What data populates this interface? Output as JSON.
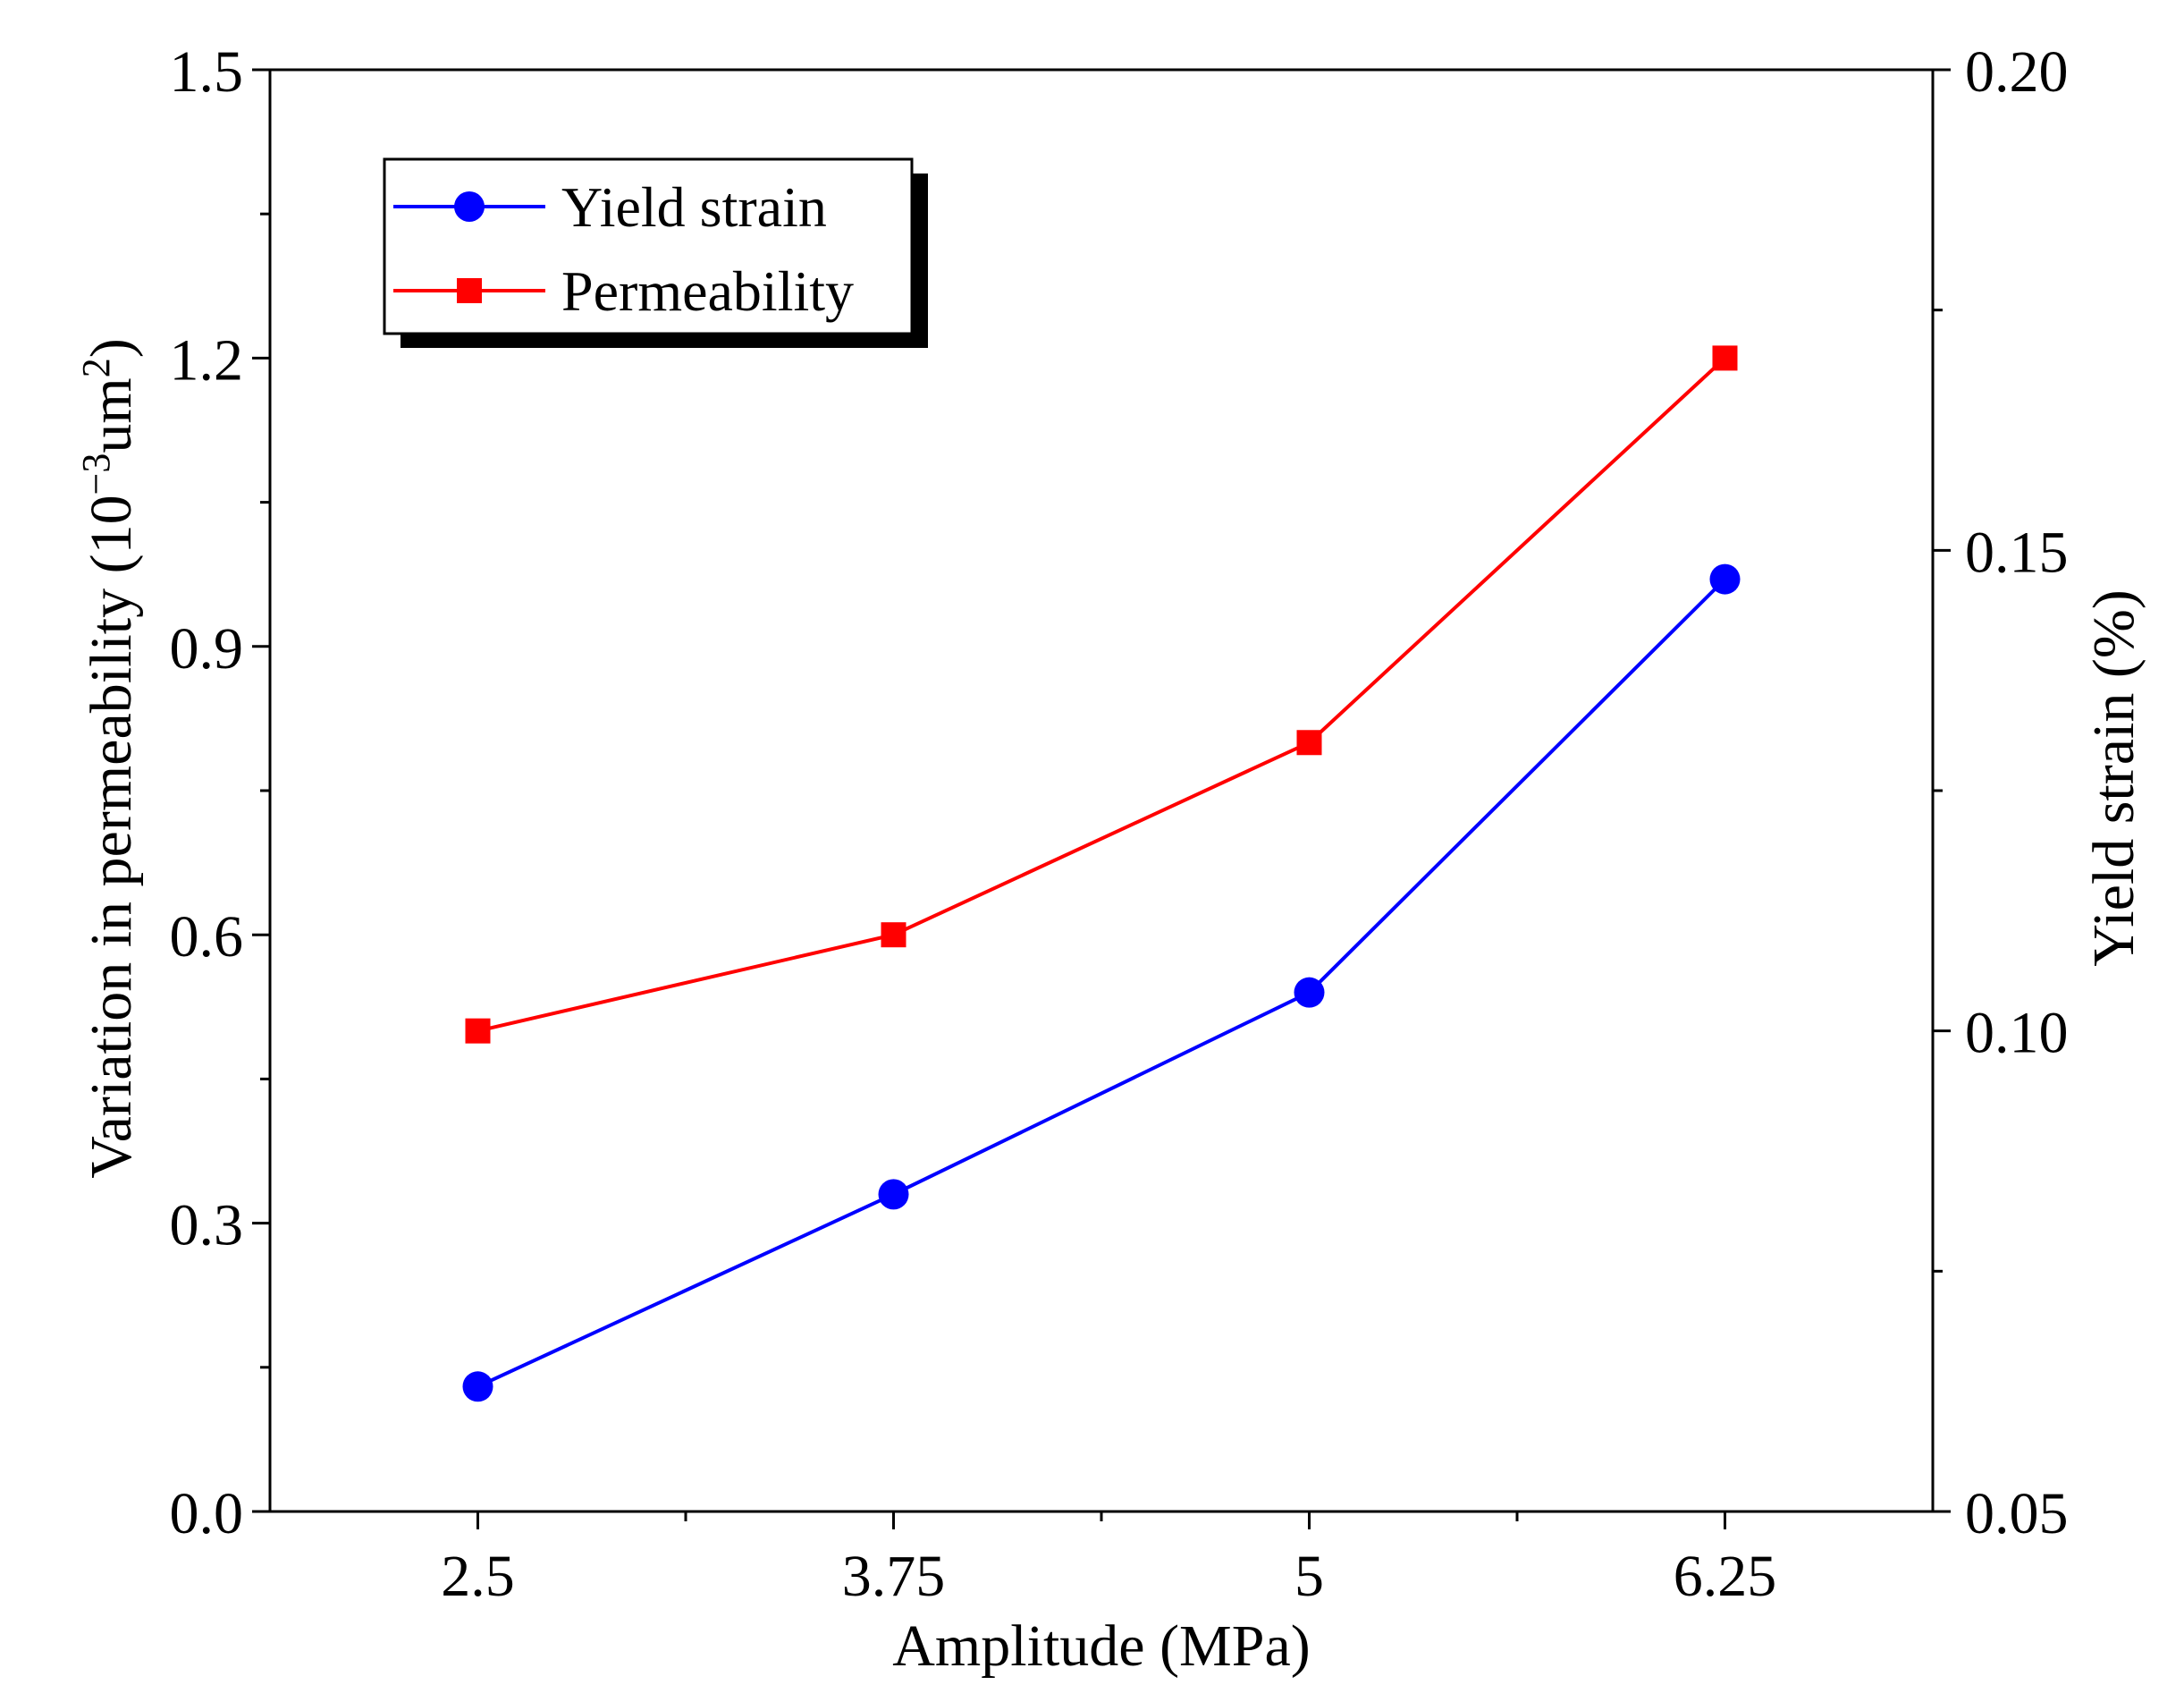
{
  "chart_data": {
    "type": "line",
    "x": {
      "label": "Amplitude (MPa)",
      "categories": [
        "2.5",
        "3.75",
        "5",
        "6.25"
      ],
      "values": [
        2.5,
        3.75,
        5,
        6.25
      ],
      "range": [
        1.875,
        6.875
      ],
      "minor_ticks": [
        3.125,
        4.375,
        5.625
      ]
    },
    "y_left": {
      "label": "Variation in permeability (10",
      "label_sup": "−3",
      "label_unit": "um",
      "label_sup2": "2",
      "label_close": ")",
      "range": [
        0,
        1.5
      ],
      "ticks": [
        "0.0",
        "0.3",
        "0.6",
        "0.9",
        "1.2",
        "1.5"
      ],
      "tick_values": [
        0,
        0.3,
        0.6,
        0.9,
        1.2,
        1.5
      ]
    },
    "y_right": {
      "label": "Yield strain (%)",
      "range": [
        0.05,
        0.2
      ],
      "ticks": [
        "0.05",
        "0.10",
        "0.15",
        "0.20"
      ],
      "tick_values": [
        0.05,
        0.1,
        0.15,
        0.2
      ]
    },
    "series": [
      {
        "name": "Yield strain",
        "axis": "right",
        "marker": "circle",
        "color": "#0000ff",
        "values": [
          0.063,
          0.083,
          0.104,
          0.147
        ]
      },
      {
        "name": "Permeability",
        "axis": "left",
        "marker": "square",
        "color": "#ff0000",
        "values": [
          0.5,
          0.6,
          0.8,
          1.2
        ]
      }
    ],
    "legend_position": "top-left",
    "grid": false
  }
}
